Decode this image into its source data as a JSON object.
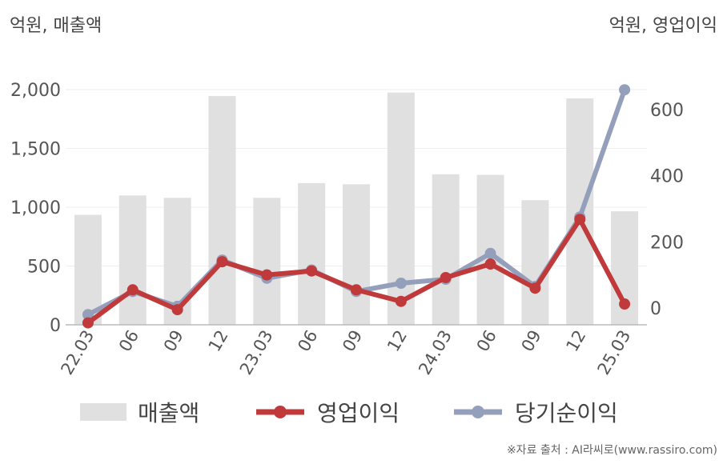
{
  "units": {
    "left": "억원, 매출액",
    "right": "억원, 영업이익"
  },
  "source": "※자료 출처 : AI라씨로(www.rassiro.com)",
  "colors": {
    "revenue": "#e0e0e0",
    "operating": "#c0393b",
    "net": "#94a0bb",
    "axis": "#bbbbbb",
    "grid": "#eeeeee"
  },
  "chart_data": {
    "type": "bar",
    "categories": [
      "22.03",
      "06",
      "09",
      "12",
      "23.03",
      "06",
      "09",
      "12",
      "24.03",
      "06",
      "09",
      "12",
      "25.03"
    ],
    "y_left": {
      "ylim": [
        0,
        2000
      ],
      "ticks": [
        "0",
        "500",
        "1,000",
        "1,500",
        "2,000"
      ]
    },
    "y_right": {
      "ylim": [
        -50,
        700
      ],
      "ticks": [
        "0",
        "200",
        "400",
        "600"
      ]
    },
    "series": [
      {
        "name": "매출액",
        "type": "bar",
        "axis": "left",
        "values": [
          935,
          1100,
          1080,
          1945,
          1080,
          1205,
          1195,
          1975,
          1280,
          1275,
          1060,
          1925,
          965
        ]
      },
      {
        "name": "영업이익",
        "type": "line",
        "axis": "right",
        "values": [
          -45,
          55,
          -5,
          140,
          100,
          112,
          55,
          20,
          92,
          133,
          60,
          268,
          12
        ]
      },
      {
        "name": "당기순이익",
        "type": "line",
        "axis": "right",
        "values": [
          -20,
          50,
          5,
          145,
          90,
          115,
          50,
          75,
          87,
          165,
          65,
          275,
          660
        ]
      }
    ]
  }
}
